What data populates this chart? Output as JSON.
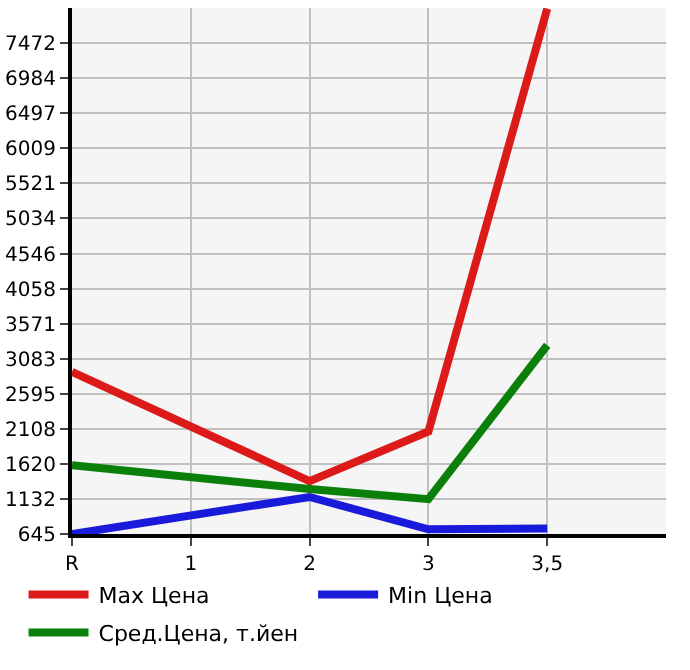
{
  "chart_data": {
    "type": "line",
    "categories": [
      "R",
      "1",
      "2",
      "3",
      "3,5"
    ],
    "series": [
      {
        "name": "Max Цена",
        "color": "#dd1a1a",
        "values": [
          2900,
          null,
          1380,
          2070,
          7950
        ]
      },
      {
        "name": "Min Цена",
        "color": "#1a1adb",
        "values": [
          645,
          null,
          1160,
          710,
          720
        ]
      },
      {
        "name": "Сред.Цена, т.йен",
        "color": "#0a800a",
        "values": [
          1600,
          null,
          1270,
          1130,
          3270
        ]
      }
    ],
    "ylim": [
      645,
      7960
    ],
    "yticks": [
      645,
      1132,
      1620,
      2108,
      2595,
      3083,
      3571,
      4058,
      4546,
      5034,
      5521,
      6009,
      6497,
      6984,
      7472
    ],
    "grid": true,
    "legend": "bottom",
    "marker": "none",
    "line_style": "solid"
  }
}
